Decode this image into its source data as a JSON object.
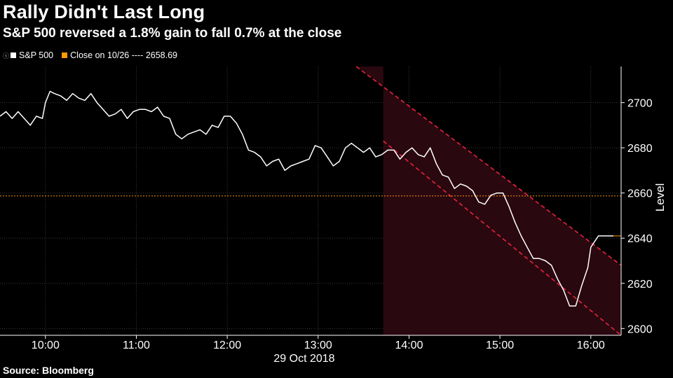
{
  "title": "Rally Didn't Last Long",
  "subtitle": "S&P 500 reversed a 1.8% gain to fall 0.7% at the close",
  "legend": [
    {
      "glyph": "ⓢ",
      "label": "S&P 500",
      "color": "#ffffff"
    },
    {
      "glyph": "",
      "label": "Close on 10/26 ---- 2658.69",
      "color": "#ff9900"
    }
  ],
  "source": "Source: Bloomberg",
  "colors": {
    "line": "#ffffff",
    "reference": "#ff9900",
    "channel_fill": "#2a0810",
    "channel_edge": "#e8233c",
    "grid": "#3a3a3a"
  },
  "chart_data": {
    "type": "line",
    "xlabel": "29 Oct 2018",
    "ylabel": "Level",
    "x_ticks": [
      "10:00",
      "11:00",
      "12:00",
      "13:00",
      "14:00",
      "15:00",
      "16:00"
    ],
    "y_ticks": [
      2600,
      2620,
      2640,
      2660,
      2680,
      2700
    ],
    "ylim": [
      2597,
      2716
    ],
    "xlim": [
      "09:30",
      "16:20"
    ],
    "grid": true,
    "reference_line": {
      "label": "Close on 10/26",
      "value": 2658.69
    },
    "last_value": 2641,
    "series": [
      {
        "name": "S&P 500",
        "x": [
          "09:30",
          "09:34",
          "09:38",
          "09:42",
          "09:46",
          "09:50",
          "09:54",
          "09:58",
          "10:00",
          "10:03",
          "10:06",
          "10:10",
          "10:14",
          "10:18",
          "10:22",
          "10:26",
          "10:30",
          "10:34",
          "10:38",
          "10:42",
          "10:46",
          "10:50",
          "10:54",
          "10:58",
          "11:02",
          "11:06",
          "11:10",
          "11:14",
          "11:18",
          "11:22",
          "11:26",
          "11:30",
          "11:34",
          "11:38",
          "11:42",
          "11:46",
          "11:50",
          "11:54",
          "11:58",
          "12:02",
          "12:06",
          "12:10",
          "12:14",
          "12:18",
          "12:22",
          "12:26",
          "12:30",
          "12:34",
          "12:38",
          "12:42",
          "12:46",
          "12:50",
          "12:54",
          "12:58",
          "13:02",
          "13:06",
          "13:10",
          "13:14",
          "13:18",
          "13:22",
          "13:26",
          "13:30",
          "13:34",
          "13:38",
          "13:42",
          "13:46",
          "13:50",
          "13:54",
          "13:58",
          "14:02",
          "14:06",
          "14:10",
          "14:14",
          "14:18",
          "14:22",
          "14:26",
          "14:30",
          "14:34",
          "14:38",
          "14:42",
          "14:46",
          "14:50",
          "14:54",
          "14:58",
          "15:02",
          "15:06",
          "15:10",
          "15:14",
          "15:18",
          "15:22",
          "15:26",
          "15:30",
          "15:34",
          "15:38",
          "15:42",
          "15:46",
          "15:50",
          "15:54",
          "15:58",
          "16:00",
          "16:05",
          "16:10",
          "16:15"
        ],
        "values": [
          2694,
          2696,
          2693,
          2696,
          2693,
          2690,
          2694,
          2693,
          2700,
          2705,
          2704,
          2703,
          2701,
          2704,
          2702,
          2701,
          2704,
          2700,
          2697,
          2694,
          2695,
          2697,
          2693,
          2696,
          2697,
          2697,
          2696,
          2698,
          2694,
          2693,
          2686,
          2684,
          2686,
          2687,
          2688,
          2686,
          2690,
          2689,
          2694,
          2694,
          2691,
          2686,
          2679,
          2678,
          2676,
          2672,
          2674,
          2675,
          2670,
          2672,
          2673,
          2674,
          2675,
          2681,
          2680,
          2676,
          2672,
          2674,
          2680,
          2682,
          2680,
          2678,
          2680,
          2676,
          2677,
          2679,
          2679,
          2675,
          2678,
          2680,
          2677,
          2676,
          2680,
          2673,
          2668,
          2667,
          2662,
          2664,
          2663,
          2661,
          2656,
          2655,
          2659,
          2660,
          2660,
          2654,
          2647,
          2641,
          2636,
          2631,
          2631,
          2630,
          2628,
          2622,
          2617,
          2610,
          2610,
          2619,
          2627,
          2636,
          2641,
          2641,
          2641
        ]
      }
    ],
    "channel": {
      "start_time": "13:43",
      "upper": [
        {
          "x": "13:43",
          "y": 2707
        },
        {
          "x": "16:20",
          "y": 2628
        }
      ],
      "lower": [
        {
          "x": "13:43",
          "y": 2683
        },
        {
          "x": "16:20",
          "y": 2597
        }
      ]
    }
  }
}
